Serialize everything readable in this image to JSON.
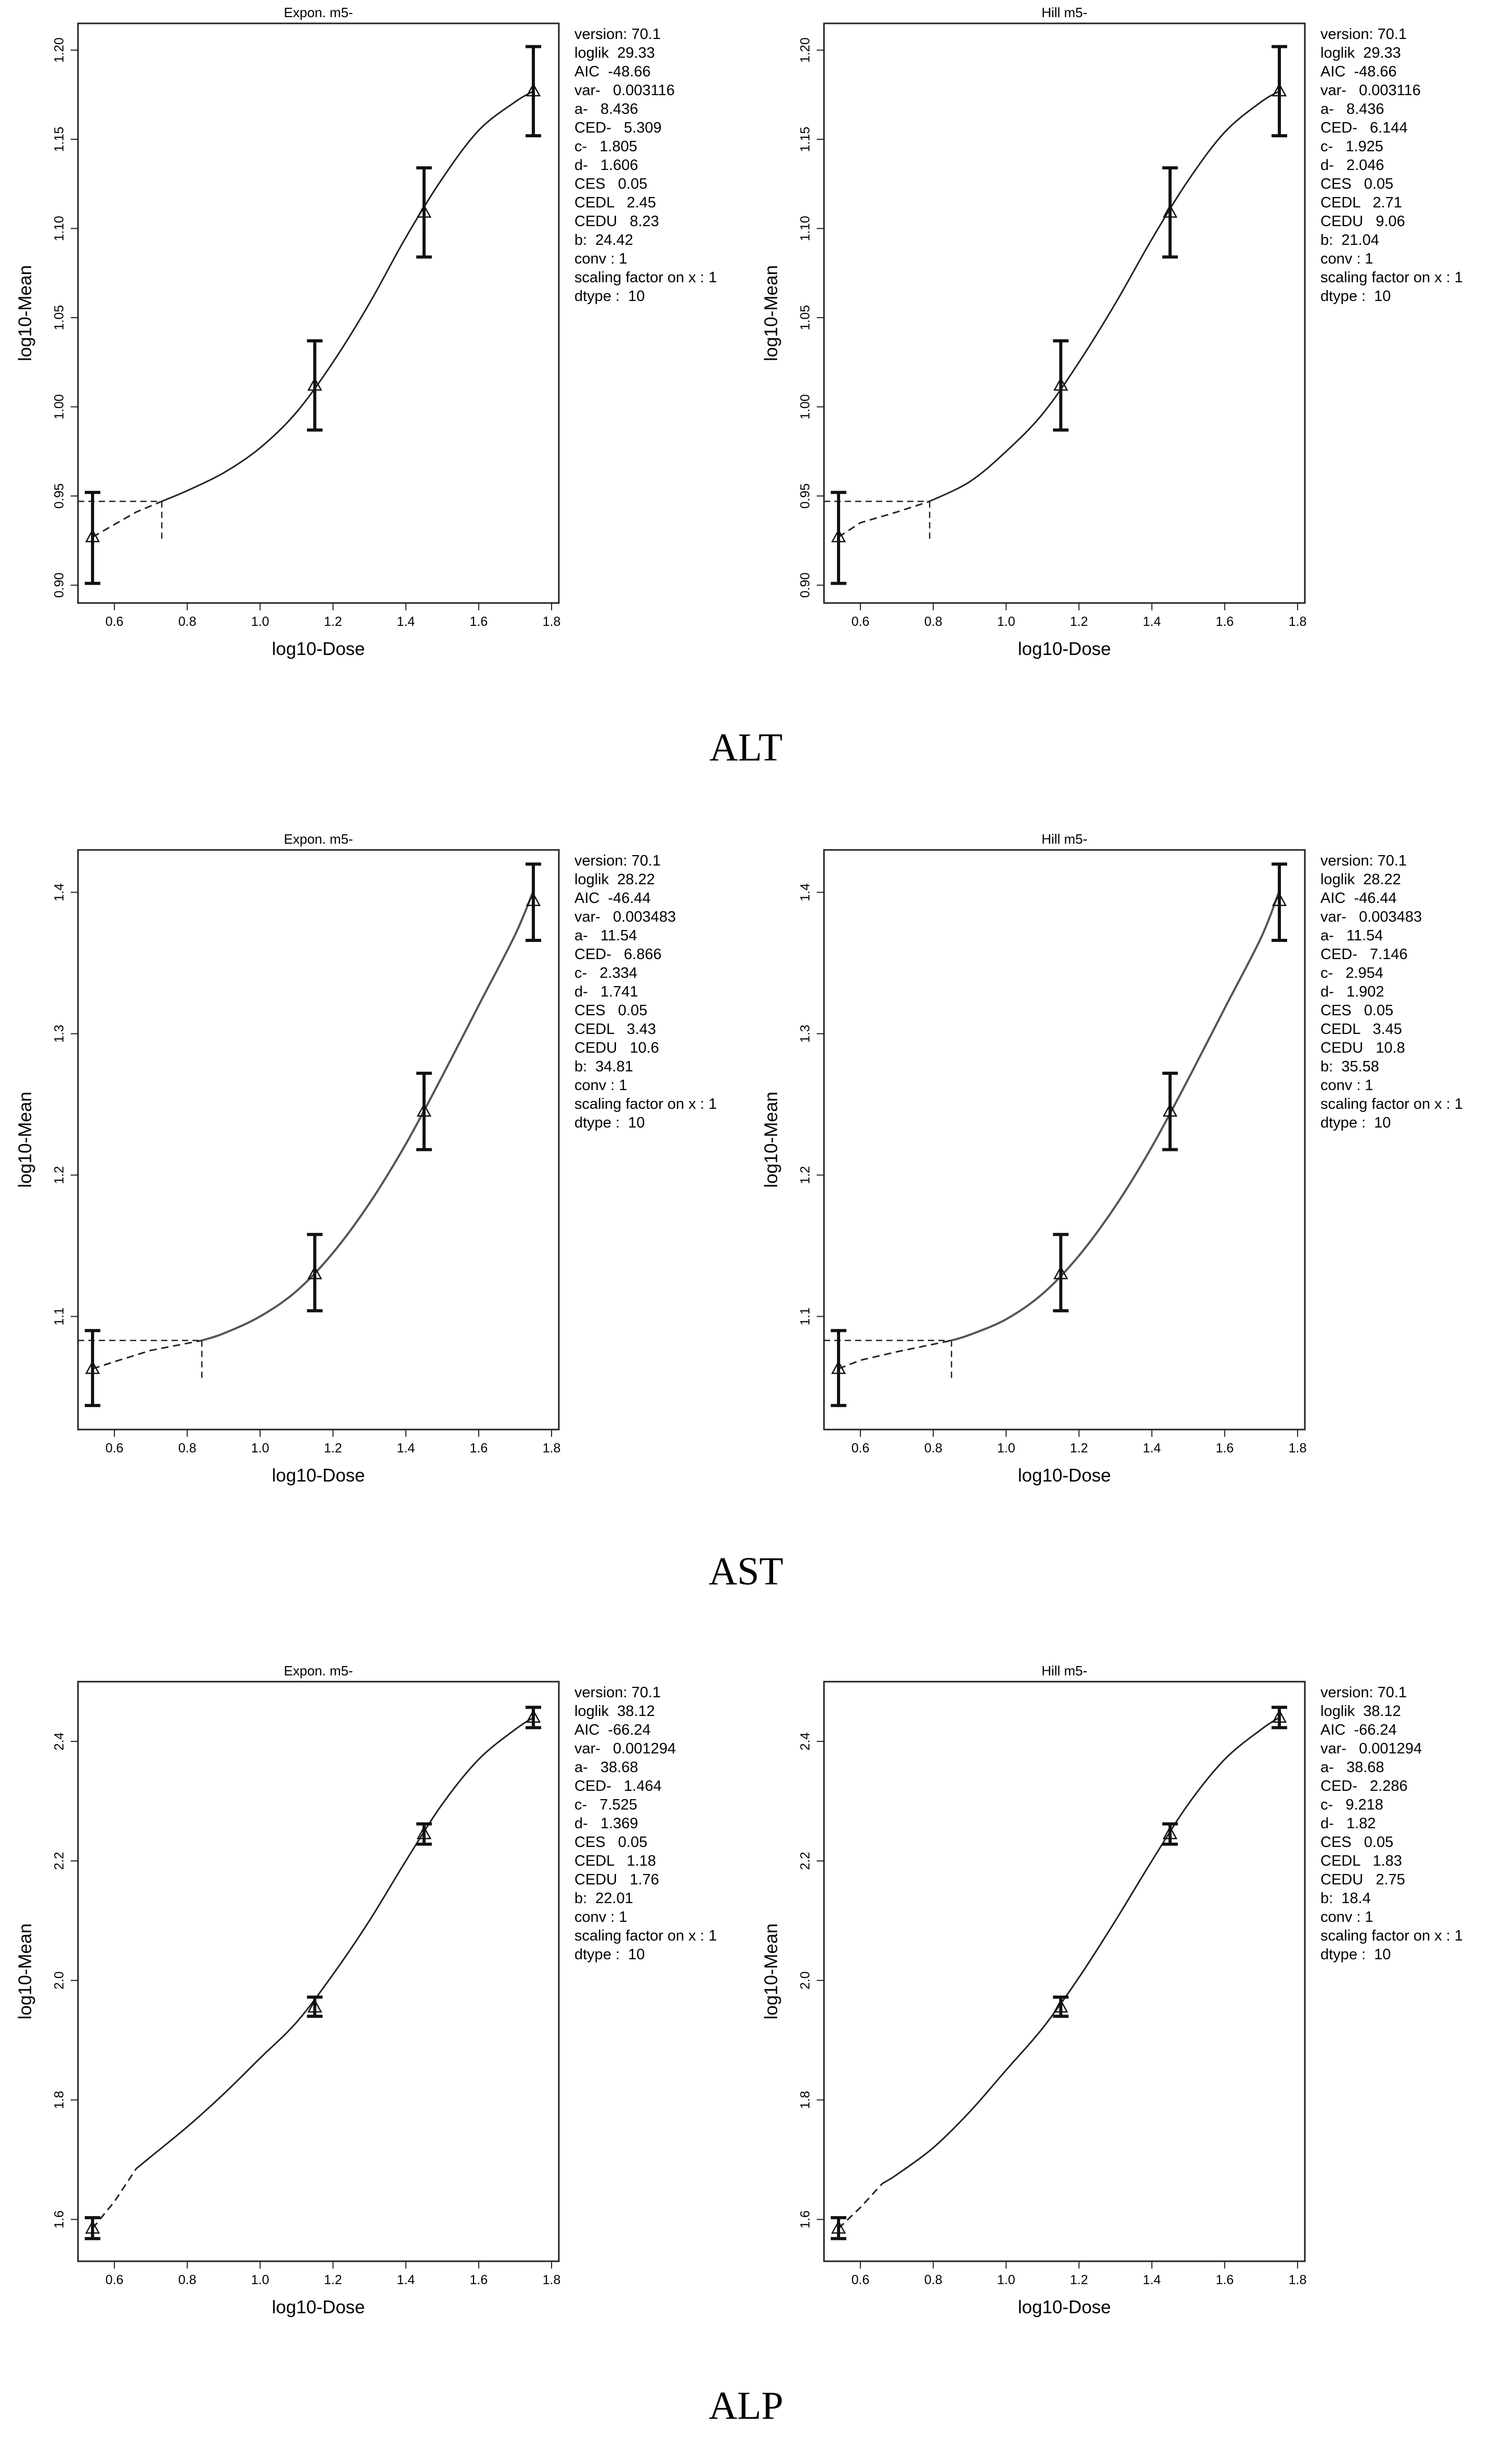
{
  "sections": [
    {
      "caption": "ALT",
      "plots": [
        {
          "params": [
            "version: 70.1",
            "loglik  29.33",
            "AIC  -48.66",
            "var-   0.003116",
            "a-   8.436",
            "CED-   5.309",
            "c-   1.805",
            "d-   1.606",
            "CES   0.05",
            "CEDL   2.45",
            "CEDU   8.23",
            "b:  24.42",
            "conv : 1",
            "scaling factor on x : 1",
            "dtype :  10"
          ],
          "chart_data": {
            "type": "line",
            "title": "Expon. m5-",
            "xlabel": "log10-Dose",
            "ylabel": "log10-Mean",
            "xlim": [
              0.5,
              1.82
            ],
            "ylim": [
              0.89,
              1.215
            ],
            "xticks": [
              "0.6",
              "0.8",
              "1.0",
              "1.2",
              "1.4",
              "1.6",
              "1.8"
            ],
            "yticks": [
              "0.90",
              "0.95",
              "1.00",
              "1.05",
              "1.10",
              "1.15",
              "1.20"
            ],
            "points": [
              {
                "x": 0.54,
                "y": 0.927,
                "lo": 0.901,
                "hi": 0.952
              },
              {
                "x": 1.15,
                "y": 1.012,
                "lo": 0.987,
                "hi": 1.037
              },
              {
                "x": 1.45,
                "y": 1.109,
                "lo": 1.084,
                "hi": 1.134
              },
              {
                "x": 1.75,
                "y": 1.177,
                "lo": 1.152,
                "hi": 1.202
              }
            ],
            "curve": [
              [
                0.73,
                0.947
              ],
              [
                0.8,
                0.953
              ],
              [
                0.9,
                0.963
              ],
              [
                1.0,
                0.977
              ],
              [
                1.1,
                0.997
              ],
              [
                1.2,
                1.025
              ],
              [
                1.3,
                1.058
              ],
              [
                1.4,
                1.095
              ],
              [
                1.5,
                1.128
              ],
              [
                1.6,
                1.155
              ],
              [
                1.7,
                1.171
              ],
              [
                1.75,
                1.177
              ]
            ],
            "tail": [
              [
                0.54,
                0.927
              ],
              [
                0.6,
                0.934
              ],
              [
                0.66,
                0.941
              ],
              [
                0.73,
                0.947
              ]
            ],
            "ced": {
              "x": 0.73,
              "y": 0.947
            }
          }
        },
        {
          "params": [
            "version: 70.1",
            "loglik  29.33",
            "AIC  -48.66",
            "var-   0.003116",
            "a-   8.436",
            "CED-   6.144",
            "c-   1.925",
            "d-   2.046",
            "CES   0.05",
            "CEDL   2.71",
            "CEDU   9.06",
            "b:  21.04",
            "conv : 1",
            "scaling factor on x : 1",
            "dtype :  10"
          ],
          "chart_data": {
            "type": "line",
            "title": "Hill m5-",
            "xlabel": "log10-Dose",
            "ylabel": "log10-Mean",
            "xlim": [
              0.5,
              1.82
            ],
            "ylim": [
              0.89,
              1.215
            ],
            "xticks": [
              "0.6",
              "0.8",
              "1.0",
              "1.2",
              "1.4",
              "1.6",
              "1.8"
            ],
            "yticks": [
              "0.90",
              "0.95",
              "1.00",
              "1.05",
              "1.10",
              "1.15",
              "1.20"
            ],
            "points": [
              {
                "x": 0.54,
                "y": 0.927,
                "lo": 0.901,
                "hi": 0.952
              },
              {
                "x": 1.15,
                "y": 1.012,
                "lo": 0.987,
                "hi": 1.037
              },
              {
                "x": 1.45,
                "y": 1.109,
                "lo": 1.084,
                "hi": 1.134
              },
              {
                "x": 1.75,
                "y": 1.177,
                "lo": 1.152,
                "hi": 1.202
              }
            ],
            "curve": [
              [
                0.79,
                0.947
              ],
              [
                0.9,
                0.958
              ],
              [
                1.0,
                0.975
              ],
              [
                1.1,
                0.996
              ],
              [
                1.2,
                1.025
              ],
              [
                1.3,
                1.058
              ],
              [
                1.4,
                1.094
              ],
              [
                1.5,
                1.127
              ],
              [
                1.6,
                1.154
              ],
              [
                1.7,
                1.171
              ],
              [
                1.75,
                1.177
              ]
            ],
            "tail": [
              [
                0.54,
                0.927
              ],
              [
                0.6,
                0.935
              ],
              [
                0.7,
                0.941
              ],
              [
                0.79,
                0.947
              ]
            ],
            "ced": {
              "x": 0.79,
              "y": 0.947
            }
          }
        }
      ]
    },
    {
      "caption": "AST",
      "plots": [
        {
          "params": [
            "version: 70.1",
            "loglik  28.22",
            "AIC  -46.44",
            "var-   0.003483",
            "a-   11.54",
            "CED-   6.866",
            "c-   2.334",
            "d-   1.741",
            "CES   0.05",
            "CEDL   3.43",
            "CEDU   10.6",
            "b:  34.81",
            "conv : 1",
            "scaling factor on x : 1",
            "dtype :  10"
          ],
          "chart_data": {
            "type": "line",
            "title": "Expon. m5-",
            "xlabel": "log10-Dose",
            "ylabel": "log10-Mean",
            "xlim": [
              0.5,
              1.82
            ],
            "ylim": [
              1.02,
              1.43
            ],
            "xticks": [
              "0.6",
              "0.8",
              "1.0",
              "1.2",
              "1.4",
              "1.6",
              "1.8"
            ],
            "yticks": [
              "1.1",
              "1.2",
              "1.3",
              "1.4"
            ],
            "points": [
              {
                "x": 0.54,
                "y": 1.063,
                "lo": 1.037,
                "hi": 1.09
              },
              {
                "x": 1.15,
                "y": 1.13,
                "lo": 1.104,
                "hi": 1.158
              },
              {
                "x": 1.45,
                "y": 1.245,
                "lo": 1.218,
                "hi": 1.272
              },
              {
                "x": 1.75,
                "y": 1.394,
                "lo": 1.366,
                "hi": 1.42
              }
            ],
            "curve": [
              [
                0.84,
                1.083
              ],
              [
                0.9,
                1.088
              ],
              [
                1.0,
                1.1
              ],
              [
                1.1,
                1.118
              ],
              [
                1.2,
                1.145
              ],
              [
                1.3,
                1.18
              ],
              [
                1.4,
                1.222
              ],
              [
                1.5,
                1.27
              ],
              [
                1.6,
                1.32
              ],
              [
                1.7,
                1.37
              ],
              [
                1.75,
                1.401
              ]
            ],
            "tail": [
              [
                0.54,
                1.063
              ],
              [
                0.6,
                1.068
              ],
              [
                0.7,
                1.076
              ],
              [
                0.84,
                1.083
              ]
            ],
            "ced": {
              "x": 0.84,
              "y": 1.083
            }
          }
        },
        {
          "params": [
            "version: 70.1",
            "loglik  28.22",
            "AIC  -46.44",
            "var-   0.003483",
            "a-   11.54",
            "CED-   7.146",
            "c-   2.954",
            "d-   1.902",
            "CES   0.05",
            "CEDL   3.45",
            "CEDU   10.8",
            "b:  35.58",
            "conv : 1",
            "scaling factor on x : 1",
            "dtype :  10"
          ],
          "chart_data": {
            "type": "line",
            "title": "Hill m5-",
            "xlabel": "log10-Dose",
            "ylabel": "log10-Mean",
            "xlim": [
              0.5,
              1.82
            ],
            "ylim": [
              1.02,
              1.43
            ],
            "xticks": [
              "0.6",
              "0.8",
              "1.0",
              "1.2",
              "1.4",
              "1.6",
              "1.8"
            ],
            "yticks": [
              "1.1",
              "1.2",
              "1.3",
              "1.4"
            ],
            "points": [
              {
                "x": 0.54,
                "y": 1.063,
                "lo": 1.037,
                "hi": 1.09
              },
              {
                "x": 1.15,
                "y": 1.13,
                "lo": 1.104,
                "hi": 1.158
              },
              {
                "x": 1.45,
                "y": 1.245,
                "lo": 1.218,
                "hi": 1.272
              },
              {
                "x": 1.75,
                "y": 1.394,
                "lo": 1.366,
                "hi": 1.42
              }
            ],
            "curve": [
              [
                0.85,
                1.083
              ],
              [
                0.9,
                1.087
              ],
              [
                1.0,
                1.098
              ],
              [
                1.1,
                1.116
              ],
              [
                1.2,
                1.143
              ],
              [
                1.3,
                1.178
              ],
              [
                1.4,
                1.22
              ],
              [
                1.5,
                1.268
              ],
              [
                1.6,
                1.318
              ],
              [
                1.7,
                1.368
              ],
              [
                1.75,
                1.401
              ]
            ],
            "tail": [
              [
                0.54,
                1.063
              ],
              [
                0.6,
                1.069
              ],
              [
                0.7,
                1.075
              ],
              [
                0.85,
                1.083
              ]
            ],
            "ced": {
              "x": 0.85,
              "y": 1.083
            }
          }
        }
      ]
    },
    {
      "caption": "ALP",
      "plots": [
        {
          "params": [
            "version: 70.1",
            "loglik  38.12",
            "AIC  -66.24",
            "var-   0.001294",
            "a-   38.68",
            "CED-   1.464",
            "c-   7.525",
            "d-   1.369",
            "CES   0.05",
            "CEDL   1.18",
            "CEDU   1.76",
            "b:  22.01",
            "conv : 1",
            "scaling factor on x : 1",
            "dtype :  10"
          ],
          "chart_data": {
            "type": "line",
            "title": "Expon. m5-",
            "xlabel": "log10-Dose",
            "ylabel": "log10-Mean",
            "xlim": [
              0.5,
              1.82
            ],
            "ylim": [
              1.53,
              2.5
            ],
            "xticks": [
              "0.6",
              "0.8",
              "1.0",
              "1.2",
              "1.4",
              "1.6",
              "1.8"
            ],
            "yticks": [
              "1.6",
              "1.8",
              "2.0",
              "2.2",
              "2.4"
            ],
            "points": [
              {
                "x": 0.54,
                "y": 1.585,
                "lo": 1.568,
                "hi": 1.603
              },
              {
                "x": 1.15,
                "y": 1.955,
                "lo": 1.94,
                "hi": 1.972
              },
              {
                "x": 1.45,
                "y": 2.245,
                "lo": 2.228,
                "hi": 2.262
              },
              {
                "x": 1.75,
                "y": 2.44,
                "lo": 2.423,
                "hi": 2.457
              }
            ],
            "curve": [
              [
                0.66,
                1.685
              ],
              [
                0.7,
                1.705
              ],
              [
                0.8,
                1.755
              ],
              [
                0.9,
                1.81
              ],
              [
                1.0,
                1.87
              ],
              [
                1.1,
                1.93
              ],
              [
                1.2,
                2.01
              ],
              [
                1.3,
                2.1
              ],
              [
                1.4,
                2.2
              ],
              [
                1.5,
                2.295
              ],
              [
                1.6,
                2.37
              ],
              [
                1.7,
                2.42
              ],
              [
                1.75,
                2.44
              ]
            ],
            "tail": [
              [
                0.54,
                1.585
              ],
              [
                0.6,
                1.63
              ],
              [
                0.66,
                1.685
              ]
            ],
            "ced": null
          }
        },
        {
          "params": [
            "version: 70.1",
            "loglik  38.12",
            "AIC  -66.24",
            "var-   0.001294",
            "a-   38.68",
            "CED-   2.286",
            "c-   9.218",
            "d-   1.82",
            "CES   0.05",
            "CEDL   1.83",
            "CEDU   2.75",
            "b:  18.4",
            "conv : 1",
            "scaling factor on x : 1",
            "dtype :  10"
          ],
          "chart_data": {
            "type": "line",
            "title": "Hill m5-",
            "xlabel": "log10-Dose",
            "ylabel": "log10-Mean",
            "xlim": [
              0.5,
              1.82
            ],
            "ylim": [
              1.53,
              2.5
            ],
            "xticks": [
              "0.6",
              "0.8",
              "1.0",
              "1.2",
              "1.4",
              "1.6",
              "1.8"
            ],
            "yticks": [
              "1.6",
              "1.8",
              "2.0",
              "2.2",
              "2.4"
            ],
            "points": [
              {
                "x": 0.54,
                "y": 1.585,
                "lo": 1.568,
                "hi": 1.603
              },
              {
                "x": 1.15,
                "y": 1.955,
                "lo": 1.94,
                "hi": 1.972
              },
              {
                "x": 1.45,
                "y": 2.245,
                "lo": 2.228,
                "hi": 2.262
              },
              {
                "x": 1.75,
                "y": 2.44,
                "lo": 2.423,
                "hi": 2.457
              }
            ],
            "curve": [
              [
                0.66,
                1.66
              ],
              [
                0.7,
                1.675
              ],
              [
                0.8,
                1.72
              ],
              [
                0.9,
                1.78
              ],
              [
                1.0,
                1.85
              ],
              [
                1.1,
                1.92
              ],
              [
                1.2,
                2.005
              ],
              [
                1.3,
                2.1
              ],
              [
                1.4,
                2.2
              ],
              [
                1.5,
                2.295
              ],
              [
                1.6,
                2.37
              ],
              [
                1.7,
                2.42
              ],
              [
                1.75,
                2.44
              ]
            ],
            "tail": [
              [
                0.54,
                1.585
              ],
              [
                0.6,
                1.62
              ],
              [
                0.66,
                1.66
              ]
            ],
            "ced": null
          }
        }
      ]
    }
  ]
}
